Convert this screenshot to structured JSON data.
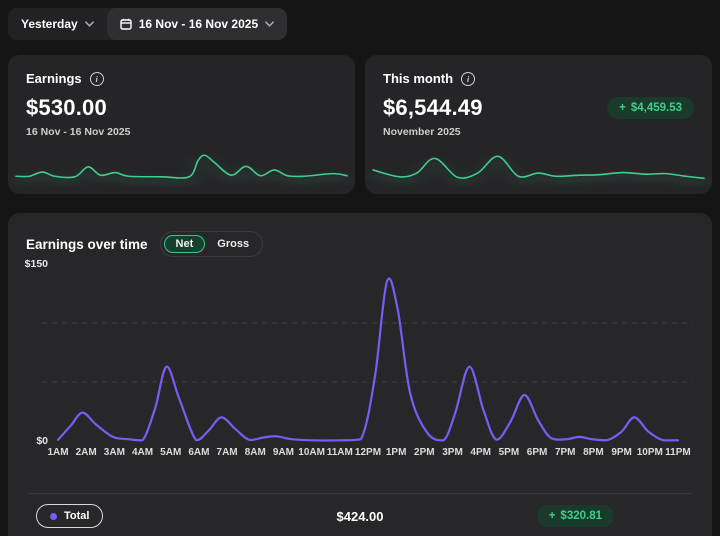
{
  "topbar": {
    "period_button": {
      "label": "Yesterday"
    },
    "date_button": {
      "label": "16 Nov - 16 Nov 2025"
    }
  },
  "summary_cards": {
    "earnings": {
      "title": "Earnings",
      "value": "$530.00",
      "subtitle": "16 Nov - 16 Nov 2025"
    },
    "this_month": {
      "title": "This month",
      "value": "$6,544.49",
      "subtitle": "November 2025",
      "badge_amount": "$4,459.53"
    }
  },
  "earnings_over_time": {
    "title": "Earnings over time",
    "toggle": {
      "net": "Net",
      "gross": "Gross",
      "selected": "Net"
    },
    "y_axis_top": "$150",
    "y_axis_bottom": "$0",
    "footer": {
      "legend_label": "Total",
      "total_value": "$424.00",
      "badge_amount": "$320.81"
    }
  },
  "icons": {
    "info": "i",
    "plus": "+",
    "chevron_down": "chevron-down-icon",
    "calendar": "calendar-icon",
    "legend_dot": "legend-dot"
  },
  "colors": {
    "accent_green": "#3ecf8e",
    "accent_purple": "#7a5cf5",
    "badge_bg": "#1a3a2b",
    "card_bg": "#252527",
    "page_bg": "#151516"
  },
  "chart_data": {
    "main": {
      "type": "line",
      "title": "Earnings over time",
      "ylabel": "$",
      "ylim": [
        0,
        150
      ],
      "gridlines": [
        50,
        100
      ],
      "grid": "dashed",
      "x_labels": [
        "1AM",
        "2AM",
        "3AM",
        "4AM",
        "5AM",
        "6AM",
        "7AM",
        "8AM",
        "9AM",
        "10AM",
        "11AM",
        "12PM",
        "1PM",
        "2PM",
        "3PM",
        "4PM",
        "5PM",
        "6PM",
        "7PM",
        "8PM",
        "9PM",
        "10PM",
        "11PM"
      ],
      "legend": [
        "Total"
      ],
      "series": [
        {
          "name": "Total",
          "color": "#7a5cf5",
          "points": [
            [
              1,
              1
            ],
            [
              1.45,
              13
            ],
            [
              1.87,
              24
            ],
            [
              2.35,
              14
            ],
            [
              2.95,
              3.5
            ],
            [
              3.5,
              1.5
            ],
            [
              4.0,
              0.6
            ],
            [
              4.45,
              28
            ],
            [
              4.85,
              63
            ],
            [
              5.3,
              36
            ],
            [
              5.9,
              0.8
            ],
            [
              6.35,
              9
            ],
            [
              6.8,
              20
            ],
            [
              7.3,
              10
            ],
            [
              7.78,
              1
            ],
            [
              8.3,
              3
            ],
            [
              8.75,
              4
            ],
            [
              9.3,
              1.5
            ],
            [
              10,
              0.6
            ],
            [
              11,
              0.6
            ],
            [
              11.75,
              1.5
            ],
            [
              12.25,
              55
            ],
            [
              12.67,
              135
            ],
            [
              13.05,
              112
            ],
            [
              13.5,
              40
            ],
            [
              14.1,
              7
            ],
            [
              14.68,
              0.6
            ],
            [
              15.1,
              24
            ],
            [
              15.6,
              63
            ],
            [
              16.1,
              26
            ],
            [
              16.55,
              1.2
            ],
            [
              17.05,
              16
            ],
            [
              17.55,
              39
            ],
            [
              18.05,
              17
            ],
            [
              18.5,
              2.5
            ],
            [
              19.05,
              1.5
            ],
            [
              19.5,
              3.5
            ],
            [
              19.95,
              1.5
            ],
            [
              20.5,
              0.8
            ],
            [
              21,
              8
            ],
            [
              21.45,
              20
            ],
            [
              21.95,
              8
            ],
            [
              22.45,
              0.8
            ],
            [
              23,
              0.6
            ]
          ]
        }
      ],
      "total": "$424.00",
      "delta": "+ $320.81"
    },
    "earnings_spark": {
      "type": "line",
      "color": "#3ecf8e",
      "units": "normalized 0-100 x, 0-40 y (y down)",
      "points": [
        [
          0,
          25
        ],
        [
          4,
          25
        ],
        [
          8,
          21
        ],
        [
          11.7,
          25
        ],
        [
          17.8,
          25.5
        ],
        [
          21.8,
          16
        ],
        [
          25.5,
          24
        ],
        [
          30,
          21.5
        ],
        [
          34,
          25
        ],
        [
          44,
          25.5
        ],
        [
          52.3,
          25.5
        ],
        [
          55,
          10
        ],
        [
          57,
          5
        ],
        [
          60,
          12
        ],
        [
          65,
          24
        ],
        [
          69.5,
          15.5
        ],
        [
          73.8,
          24.5
        ],
        [
          78,
          19
        ],
        [
          82,
          24.5
        ],
        [
          87,
          25
        ],
        [
          95.7,
          22.5
        ],
        [
          100,
          24.5
        ]
      ]
    },
    "month_spark": {
      "type": "line",
      "color": "#3ecf8e",
      "units": "normalized 0-100 x, 0-40 y (y down)",
      "points": [
        [
          0,
          19
        ],
        [
          8,
          25.5
        ],
        [
          13.2,
          22
        ],
        [
          18.7,
          8
        ],
        [
          25.5,
          26
        ],
        [
          31.6,
          22
        ],
        [
          37.7,
          6
        ],
        [
          43.9,
          25
        ],
        [
          50,
          22
        ],
        [
          55.2,
          25
        ],
        [
          62.3,
          24
        ],
        [
          68.4,
          23.5
        ],
        [
          75.5,
          21.5
        ],
        [
          82.2,
          23
        ],
        [
          88.3,
          22.5
        ],
        [
          94.5,
          25
        ],
        [
          100,
          27
        ]
      ]
    }
  }
}
